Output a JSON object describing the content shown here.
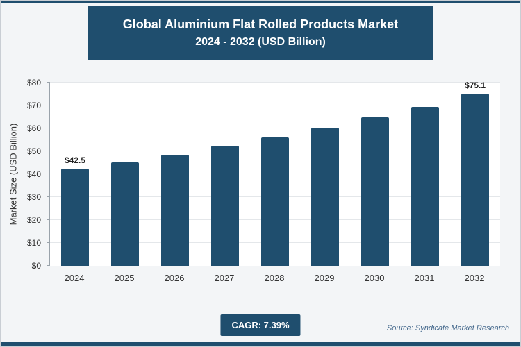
{
  "header": {
    "title_line1": "Global Aluminium Flat Rolled Products Market",
    "title_line2": "2024 - 2032 (USD Billion)"
  },
  "chart_data": {
    "type": "bar",
    "title": "Global Aluminium Flat Rolled Products Market 2024 - 2032 (USD Billion)",
    "categories": [
      "2024",
      "2025",
      "2026",
      "2027",
      "2028",
      "2029",
      "2030",
      "2031",
      "2032"
    ],
    "values": [
      42.5,
      45.2,
      48.5,
      52.3,
      56.2,
      60.4,
      64.8,
      69.5,
      75.1
    ],
    "labeled_points": {
      "first": "$42.5",
      "last": "$75.1"
    },
    "xlabel": "",
    "ylabel": "Market Size (USD Billion)",
    "ylim": [
      0,
      80
    ],
    "ytick_step": 10,
    "ytick_labels": [
      "$0",
      "$10",
      "$20",
      "$30",
      "$40",
      "$50",
      "$60",
      "$70",
      "$80"
    ],
    "grid": "horizontal",
    "legend": "none",
    "bar_color": "#1F4E6E"
  },
  "footer": {
    "cagr_label": "CAGR: 7.39%",
    "source": "Source: Syndicate Market Research"
  }
}
